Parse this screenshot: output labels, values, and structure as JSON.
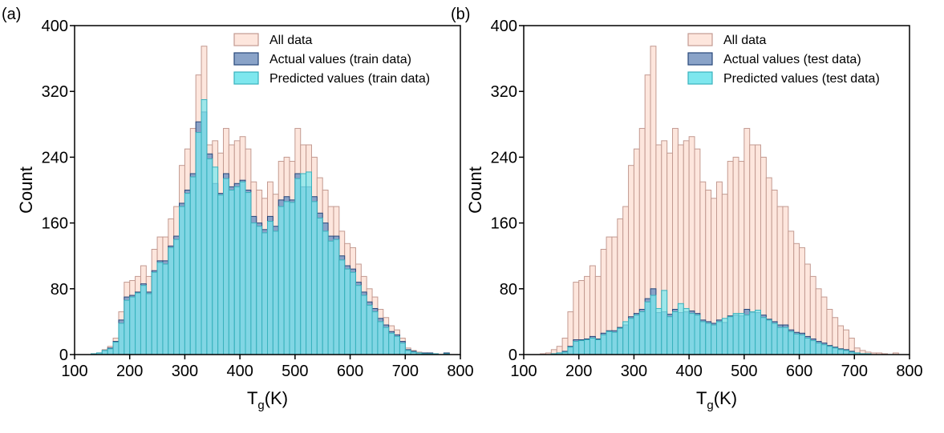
{
  "chart_data": [
    {
      "type": "histogram",
      "panel_label": "(a)",
      "ylabel": "Count",
      "xlabel_parts": [
        "T",
        "g",
        "(K)"
      ],
      "bins": [
        130,
        140,
        150,
        160,
        170,
        180,
        190,
        200,
        210,
        220,
        230,
        240,
        250,
        260,
        270,
        280,
        290,
        300,
        310,
        320,
        330,
        340,
        350,
        360,
        370,
        380,
        390,
        400,
        410,
        420,
        430,
        440,
        450,
        460,
        470,
        480,
        490,
        500,
        510,
        520,
        530,
        540,
        550,
        560,
        570,
        580,
        590,
        600,
        610,
        620,
        630,
        640,
        650,
        660,
        670,
        680,
        690,
        700,
        710,
        720,
        730,
        740,
        750,
        760,
        770,
        780
      ],
      "series": [
        {
          "name": "All data",
          "color": "#fde6dd",
          "edgecolor": "#c39a91",
          "values": [
            1,
            2,
            6,
            10,
            20,
            52,
            88,
            90,
            95,
            108,
            95,
            128,
            143,
            143,
            165,
            180,
            230,
            250,
            275,
            340,
            375,
            255,
            260,
            245,
            275,
            255,
            260,
            265,
            250,
            210,
            200,
            190,
            210,
            195,
            235,
            240,
            235,
            275,
            255,
            255,
            240,
            215,
            200,
            180,
            180,
            150,
            135,
            130,
            110,
            95,
            80,
            70,
            55,
            45,
            35,
            30,
            20,
            8,
            5,
            3,
            2,
            2,
            1,
            0,
            2
          ]
        },
        {
          "name": "Actual values (train data)",
          "color": "#8aa3c8",
          "edgecolor": "#27477a",
          "values": [
            1,
            2,
            5,
            8,
            16,
            42,
            70,
            72,
            76,
            86,
            76,
            102,
            114,
            114,
            132,
            144,
            184,
            200,
            220,
            283,
            295,
            244,
            208,
            196,
            220,
            204,
            208,
            212,
            200,
            168,
            160,
            152,
            168,
            156,
            188,
            192,
            188,
            220,
            204,
            204,
            192,
            172,
            160,
            144,
            144,
            120,
            108,
            104,
            88,
            76,
            64,
            56,
            44,
            36,
            28,
            24,
            16,
            6,
            4,
            2,
            2,
            2,
            1,
            0,
            2
          ]
        },
        {
          "name": "Predicted values (train data)",
          "color": "#7ee7ee",
          "edgecolor": "#38b2bd",
          "values": [
            1,
            2,
            5,
            7,
            15,
            38,
            66,
            70,
            75,
            84,
            74,
            100,
            112,
            110,
            130,
            140,
            180,
            196,
            216,
            270,
            310,
            238,
            228,
            194,
            214,
            200,
            204,
            210,
            197,
            160,
            156,
            148,
            162,
            150,
            180,
            186,
            185,
            214,
            220,
            222,
            186,
            166,
            150,
            138,
            140,
            115,
            104,
            100,
            84,
            72,
            60,
            52,
            40,
            33,
            26,
            22,
            14,
            5,
            3,
            2,
            1,
            1,
            1,
            0,
            1
          ]
        }
      ],
      "xlim": [
        100,
        800
      ],
      "ylim": [
        0,
        400
      ],
      "xticks": [
        100,
        200,
        300,
        400,
        500,
        600,
        700,
        800
      ],
      "yticks": [
        0,
        80,
        160,
        240,
        320,
        400
      ]
    },
    {
      "type": "histogram",
      "panel_label": "(b)",
      "ylabel": "Count",
      "xlabel_parts": [
        "T",
        "g",
        "(K)"
      ],
      "bins": [
        130,
        140,
        150,
        160,
        170,
        180,
        190,
        200,
        210,
        220,
        230,
        240,
        250,
        260,
        270,
        280,
        290,
        300,
        310,
        320,
        330,
        340,
        350,
        360,
        370,
        380,
        390,
        400,
        410,
        420,
        430,
        440,
        450,
        460,
        470,
        480,
        490,
        500,
        510,
        520,
        530,
        540,
        550,
        560,
        570,
        580,
        590,
        600,
        610,
        620,
        630,
        640,
        650,
        660,
        670,
        680,
        690,
        700,
        710,
        720,
        730,
        740,
        750,
        760,
        770,
        780
      ],
      "series": [
        {
          "name": "All data",
          "color": "#fde6dd",
          "edgecolor": "#c39a91",
          "values": [
            1,
            2,
            6,
            10,
            20,
            52,
            88,
            90,
            95,
            108,
            95,
            128,
            143,
            143,
            165,
            180,
            230,
            250,
            275,
            340,
            375,
            255,
            260,
            245,
            275,
            255,
            260,
            265,
            250,
            210,
            200,
            190,
            210,
            195,
            235,
            240,
            235,
            275,
            255,
            255,
            240,
            215,
            200,
            180,
            180,
            150,
            135,
            130,
            110,
            95,
            80,
            70,
            55,
            45,
            35,
            30,
            20,
            8,
            5,
            3,
            2,
            2,
            1,
            0,
            2
          ]
        },
        {
          "name": "Actual values (test data)",
          "color": "#8aa3c8",
          "edgecolor": "#27477a",
          "values": [
            0,
            0,
            1,
            2,
            4,
            10,
            18,
            18,
            19,
            22,
            19,
            26,
            29,
            29,
            33,
            36,
            46,
            50,
            55,
            68,
            80,
            51,
            52,
            49,
            55,
            51,
            52,
            53,
            50,
            42,
            40,
            38,
            42,
            39,
            47,
            48,
            47,
            55,
            51,
            51,
            48,
            43,
            40,
            36,
            36,
            30,
            27,
            26,
            22,
            19,
            16,
            14,
            11,
            9,
            7,
            6,
            4,
            2,
            1,
            1,
            0,
            0,
            0,
            0,
            0
          ]
        },
        {
          "name": "Predicted values (test data)",
          "color": "#7ee7ee",
          "edgecolor": "#38b2bd",
          "values": [
            0,
            0,
            1,
            2,
            3,
            9,
            16,
            17,
            18,
            20,
            18,
            24,
            28,
            27,
            32,
            40,
            44,
            48,
            52,
            64,
            72,
            56,
            78,
            46,
            52,
            62,
            56,
            50,
            48,
            40,
            38,
            36,
            40,
            44,
            46,
            50,
            50,
            48,
            52,
            54,
            45,
            42,
            38,
            33,
            33,
            28,
            25,
            24,
            20,
            17,
            14,
            12,
            10,
            8,
            6,
            5,
            3,
            2,
            1,
            1,
            0,
            0,
            0,
            0,
            0
          ]
        }
      ],
      "xlim": [
        100,
        800
      ],
      "ylim": [
        0,
        400
      ],
      "xticks": [
        100,
        200,
        300,
        400,
        500,
        600,
        700,
        800
      ],
      "yticks": [
        0,
        80,
        160,
        240,
        320,
        400
      ]
    }
  ]
}
